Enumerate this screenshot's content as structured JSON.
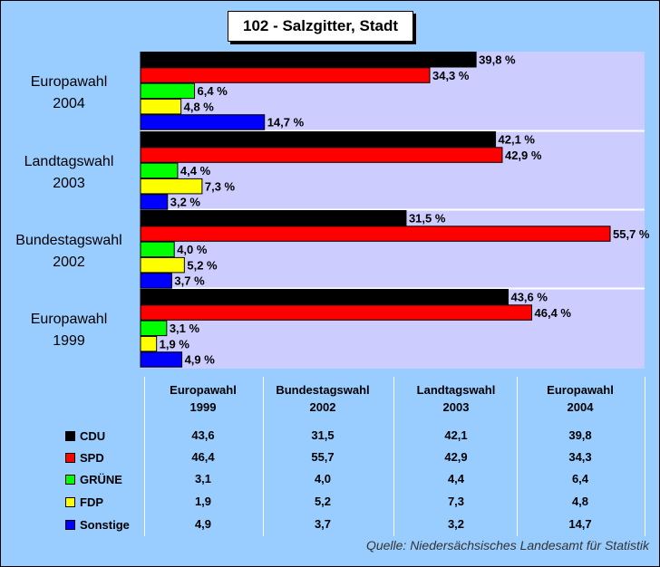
{
  "title": "102 - Salzgitter, Stadt",
  "source": "Quelle: Niedersächsisches Landesamt für Statistik",
  "colors": {
    "background": "#99CCFF",
    "plot": "#CCCCFF",
    "CDU": "#000000",
    "SPD": "#FF0000",
    "GRUENE": "#00FF00",
    "FDP": "#FFFF00",
    "Sonstige": "#0000FF"
  },
  "chart_data": {
    "type": "bar",
    "orientation": "horizontal",
    "title": "102 - Salzgitter, Stadt",
    "categories_top_to_bottom": [
      [
        "Europawahl",
        "2004"
      ],
      [
        "Landtagswahl",
        "2003"
      ],
      [
        "Bundestagswahl",
        "2002"
      ],
      [
        "Europawahl",
        "1999"
      ]
    ],
    "series": [
      {
        "name": "CDU",
        "values": [
          39.8,
          42.1,
          31.5,
          43.6
        ],
        "labels": [
          "39,8 %",
          "42,1 %",
          "31,5 %",
          "43,6 %"
        ]
      },
      {
        "name": "SPD",
        "values": [
          34.3,
          42.9,
          55.7,
          46.4
        ],
        "labels": [
          "34,3 %",
          "42,9 %",
          "55,7 %",
          "46,4 %"
        ]
      },
      {
        "name": "GRÜNE",
        "values": [
          6.4,
          4.4,
          4.0,
          3.1
        ],
        "labels": [
          "6,4 %",
          "4,4 %",
          "4,0 %",
          "3,1 %"
        ]
      },
      {
        "name": "FDP",
        "values": [
          4.8,
          7.3,
          5.2,
          1.9
        ],
        "labels": [
          "4,8 %",
          "7,3 %",
          "5,2 %",
          "1,9 %"
        ]
      },
      {
        "name": "Sonstige",
        "values": [
          14.7,
          3.2,
          3.7,
          4.9
        ],
        "labels": [
          "14,7 %",
          "3,2 %",
          "3,7 %",
          "4,9 %"
        ]
      }
    ],
    "xlim": [
      0,
      60
    ],
    "grid": false,
    "legend": "table-below"
  },
  "table": {
    "headers": [
      [
        "Europawahl",
        "1999"
      ],
      [
        "Bundestagswahl",
        "2002"
      ],
      [
        "Landtagswahl",
        "2003"
      ],
      [
        "Europawahl",
        "2004"
      ]
    ],
    "rows": [
      {
        "label": "CDU",
        "color": "#000000",
        "values": [
          "43,6",
          "31,5",
          "42,1",
          "39,8"
        ]
      },
      {
        "label": "SPD",
        "color": "#FF0000",
        "values": [
          "46,4",
          "55,7",
          "42,9",
          "34,3"
        ]
      },
      {
        "label": "GRÜNE",
        "color": "#00FF00",
        "values": [
          "3,1",
          "4,0",
          "4,4",
          "6,4"
        ]
      },
      {
        "label": "FDP",
        "color": "#FFFF00",
        "values": [
          "1,9",
          "5,2",
          "7,3",
          "4,8"
        ]
      },
      {
        "label": "Sonstige",
        "color": "#0000FF",
        "values": [
          "4,9",
          "3,7",
          "3,2",
          "14,7"
        ]
      }
    ]
  }
}
